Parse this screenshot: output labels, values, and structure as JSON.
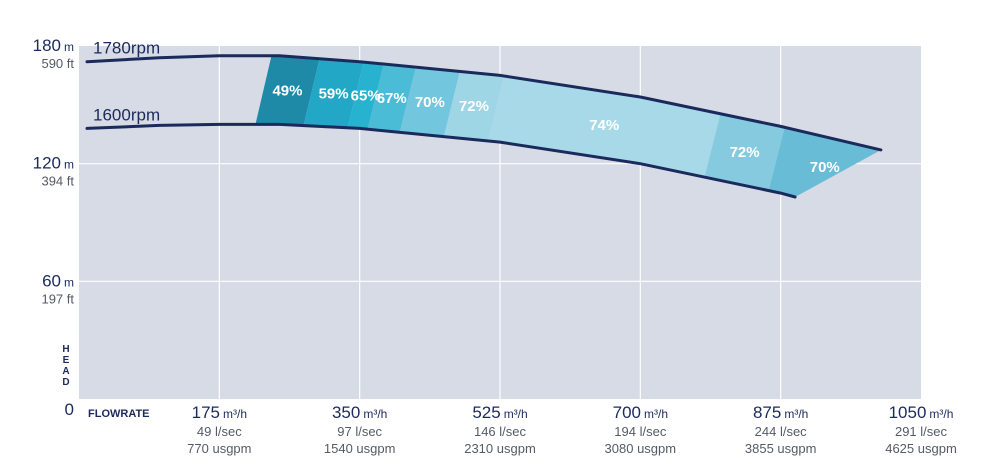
{
  "chart_data": {
    "type": "area",
    "title": "",
    "ylabel": "HEAD",
    "xlabel": "FLOWRATE",
    "xlim": [
      0,
      1050
    ],
    "ylim": [
      0,
      180
    ],
    "grid": true,
    "colors": {
      "background": "#d7dbe6",
      "grid": "#ffffff",
      "curve": "#1b2a5c",
      "text": "#1b2a5c",
      "subtext": "#555a66",
      "bands": [
        "#1f8aa8",
        "#22a7c6",
        "#27b2cf",
        "#4bbcd6",
        "#72c6de",
        "#9fd6e6",
        "#a7d9e8",
        "#86cadf",
        "#69bcd6"
      ]
    },
    "y_ticks": [
      {
        "value": 180,
        "main": "180",
        "unit": "m",
        "sub": "590 ft"
      },
      {
        "value": 120,
        "main": "120",
        "unit": "m",
        "sub": "394 ft"
      },
      {
        "value": 60,
        "main": "60",
        "unit": "m",
        "sub": "197 ft"
      },
      {
        "value": 0,
        "main": "0",
        "unit": "",
        "sub": ""
      }
    ],
    "x_ticks": [
      {
        "value": 175,
        "main": "175",
        "unit": "m³/h",
        "sub1": "49 l/sec",
        "sub2": "770 usgpm"
      },
      {
        "value": 350,
        "main": "350",
        "unit": "m³/h",
        "sub1": "97 l/sec",
        "sub2": "1540 usgpm"
      },
      {
        "value": 525,
        "main": "525",
        "unit": "m³/h",
        "sub1": "146 l/sec",
        "sub2": "2310 usgpm"
      },
      {
        "value": 700,
        "main": "700",
        "unit": "m³/h",
        "sub1": "194 l/sec",
        "sub2": "3080 usgpm"
      },
      {
        "value": 875,
        "main": "875",
        "unit": "m³/h",
        "sub1": "244 l/sec",
        "sub2": "3855 usgpm"
      },
      {
        "value": 1050,
        "main": "1050",
        "unit": "m³/h",
        "sub1": "291 l/sec",
        "sub2": "4625 usgpm"
      }
    ],
    "series": [
      {
        "name": "1780rpm",
        "x": [
          10,
          100,
          175,
          250,
          350,
          525,
          700,
          875,
          1000
        ],
        "y": [
          172,
          174,
          175,
          175,
          172,
          165,
          154,
          139,
          127
        ]
      },
      {
        "name": "1600rpm",
        "x": [
          10,
          100,
          175,
          250,
          350,
          525,
          700,
          875,
          893
        ],
        "y": [
          138,
          139.5,
          140,
          140,
          138,
          131,
          120,
          105,
          103
        ]
      }
    ],
    "efficiency_bands": [
      {
        "label": "49%",
        "x_from": 240,
        "x_to": 300
      },
      {
        "label": "59%",
        "x_from": 300,
        "x_to": 355
      },
      {
        "label": "65%",
        "x_from": 355,
        "x_to": 380
      },
      {
        "label": "67%",
        "x_from": 380,
        "x_to": 420
      },
      {
        "label": "70%",
        "x_from": 420,
        "x_to": 475
      },
      {
        "label": "72%",
        "x_from": 475,
        "x_to": 530
      },
      {
        "label": "74%",
        "x_from": 530,
        "x_to": 800
      },
      {
        "label": "72%",
        "x_from": 800,
        "x_to": 880
      },
      {
        "label": "70%",
        "x_from": 880,
        "x_to": 1000
      }
    ]
  }
}
